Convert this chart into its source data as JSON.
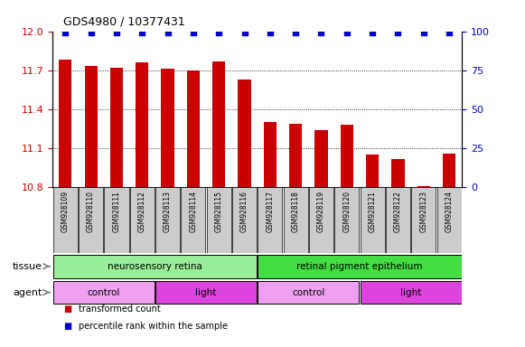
{
  "title": "GDS4980 / 10377431",
  "samples": [
    "GSM928109",
    "GSM928110",
    "GSM928111",
    "GSM928112",
    "GSM928113",
    "GSM928114",
    "GSM928115",
    "GSM928116",
    "GSM928117",
    "GSM928118",
    "GSM928119",
    "GSM928120",
    "GSM928121",
    "GSM928122",
    "GSM928123",
    "GSM928124"
  ],
  "bar_values": [
    11.78,
    11.73,
    11.72,
    11.76,
    11.71,
    11.7,
    11.77,
    11.63,
    11.3,
    11.29,
    11.24,
    11.28,
    11.05,
    11.02,
    10.81,
    11.06
  ],
  "percentile_values": [
    99,
    99,
    99,
    99,
    99,
    99,
    99,
    99,
    99,
    99,
    99,
    99,
    99,
    99,
    99,
    99
  ],
  "bar_color": "#cc0000",
  "dot_color": "#0000cc",
  "ylim_left": [
    10.8,
    12.0
  ],
  "ylim_right": [
    0,
    100
  ],
  "yticks_left": [
    10.8,
    11.1,
    11.4,
    11.7,
    12.0
  ],
  "yticks_right": [
    0,
    25,
    50,
    75,
    100
  ],
  "tissue_labels": [
    {
      "text": "neurosensory retina",
      "start": 0,
      "end": 7,
      "color": "#99ee99"
    },
    {
      "text": "retinal pigment epithelium",
      "start": 8,
      "end": 15,
      "color": "#44dd44"
    }
  ],
  "agent_labels": [
    {
      "text": "control",
      "start": 0,
      "end": 3,
      "color": "#f0a0f0"
    },
    {
      "text": "light",
      "start": 4,
      "end": 7,
      "color": "#dd44dd"
    },
    {
      "text": "control",
      "start": 8,
      "end": 11,
      "color": "#f0a0f0"
    },
    {
      "text": "light",
      "start": 12,
      "end": 15,
      "color": "#dd44dd"
    }
  ],
  "legend_items": [
    {
      "label": "transformed count",
      "color": "#cc0000"
    },
    {
      "label": "percentile rank within the sample",
      "color": "#0000cc"
    }
  ],
  "tissue_row_label": "tissue",
  "agent_row_label": "agent",
  "sample_box_color": "#cccccc",
  "background_color": "#ffffff",
  "tick_label_color_left": "#cc0000",
  "tick_label_color_right": "#0000cc",
  "bar_width": 0.5,
  "grid_yticks": [
    11.1,
    11.4,
    11.7
  ]
}
